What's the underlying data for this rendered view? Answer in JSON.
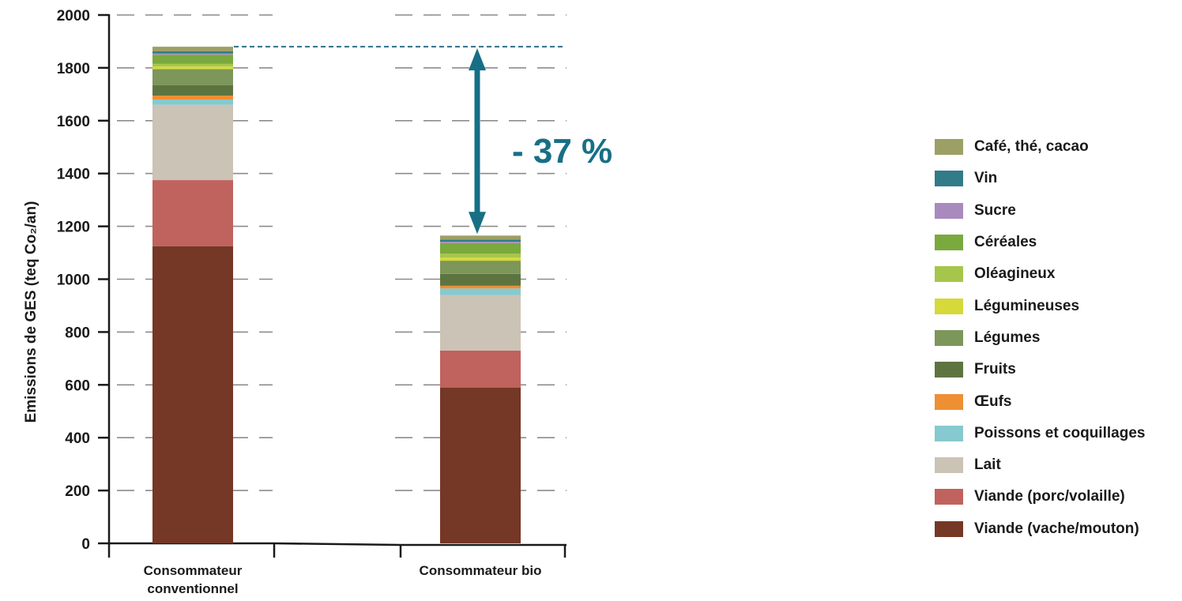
{
  "chart_data": {
    "type": "bar",
    "stacked": true,
    "title": "",
    "ylabel": "Emissions de GES  (teq Co₂/an)",
    "xlabel": "",
    "ylim": [
      0,
      2000
    ],
    "yticks": [
      0,
      200,
      400,
      600,
      800,
      1000,
      1200,
      1400,
      1600,
      1800,
      2000
    ],
    "grid": true,
    "legend_position": "right",
    "categories": [
      [
        "Consommateur",
        "conventionnel"
      ],
      [
        "Consommateur bio"
      ]
    ],
    "series": [
      {
        "name": "Viande (vache/mouton)",
        "color": "#753726",
        "values": [
          1125,
          590
        ]
      },
      {
        "name": "Viande (porc/volaille)",
        "color": "#c0625e",
        "values": [
          250,
          140
        ]
      },
      {
        "name": "Lait",
        "color": "#cbc3b5",
        "values": [
          285,
          210
        ]
      },
      {
        "name": "Poissons et coquillages",
        "color": "#86c9cf",
        "values": [
          20,
          25
        ]
      },
      {
        "name": "Œufs",
        "color": "#ee8f34",
        "values": [
          15,
          10
        ]
      },
      {
        "name": "Fruits",
        "color": "#5e7440",
        "values": [
          40,
          45
        ]
      },
      {
        "name": "Légumes",
        "color": "#7d965a",
        "values": [
          60,
          50
        ]
      },
      {
        "name": "Légumineuses",
        "color": "#d5d93a",
        "values": [
          10,
          12
        ]
      },
      {
        "name": "Oléagineux",
        "color": "#a6c64b",
        "values": [
          10,
          15
        ]
      },
      {
        "name": "Céréales",
        "color": "#7aa93e",
        "values": [
          35,
          40
        ]
      },
      {
        "name": "Sucre",
        "color": "#a98abf",
        "values": [
          5,
          5
        ]
      },
      {
        "name": "Vin",
        "color": "#327b89",
        "values": [
          8,
          8
        ]
      },
      {
        "name": "Café, thé, cacao",
        "color": "#9ca065",
        "values": [
          17,
          15
        ]
      }
    ],
    "totals": [
      1880,
      1165
    ],
    "annotation": {
      "text": "- 37 %",
      "color": "#176f86"
    }
  }
}
